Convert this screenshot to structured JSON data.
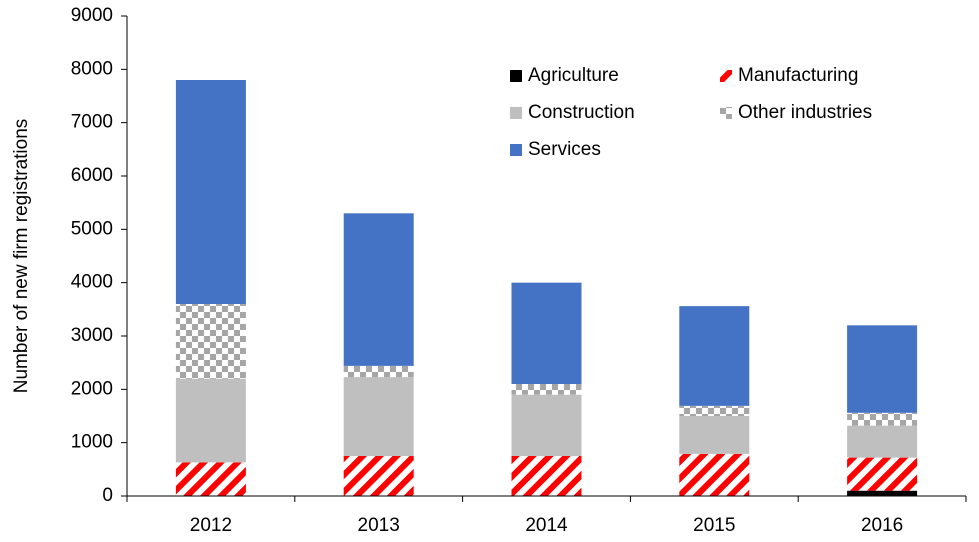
{
  "chart_data": {
    "type": "stacked-bar",
    "ylabel": "Number of new firm registrations",
    "categories": [
      "2012",
      "2013",
      "2014",
      "2015",
      "2016"
    ],
    "series": [
      {
        "name": "Agriculture",
        "color": "#000000",
        "pattern": "solid",
        "values": [
          0,
          0,
          0,
          0,
          100
        ]
      },
      {
        "name": "Manufacturing",
        "color": "#ff0000",
        "pattern": "stripes",
        "values": [
          630,
          750,
          750,
          790,
          620
        ]
      },
      {
        "name": "Construction",
        "color": "#bfbfbf",
        "pattern": "solid",
        "values": [
          1570,
          1480,
          1150,
          710,
          600
        ]
      },
      {
        "name": "Other industries",
        "color": "#a6a6a6",
        "pattern": "checker",
        "values": [
          1400,
          210,
          200,
          190,
          240
        ]
      },
      {
        "name": "Services",
        "color": "#4472c4",
        "pattern": "solid",
        "values": [
          4200,
          2860,
          1900,
          1870,
          1640
        ]
      }
    ],
    "ylim": [
      0,
      9000
    ],
    "yticks": [
      0,
      1000,
      2000,
      3000,
      4000,
      5000,
      6000,
      7000,
      8000,
      9000
    ],
    "grid": false,
    "legend": "top-right"
  }
}
